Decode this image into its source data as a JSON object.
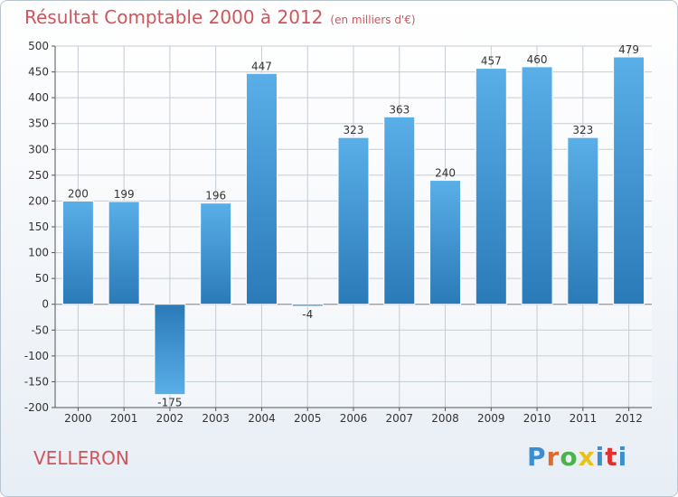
{
  "header": {
    "title": "Résultat Comptable 2000 à 2012",
    "subtitle": "(en milliers d'€)"
  },
  "footer": {
    "town": "VELLERON",
    "brand": "Proxiti",
    "brand_colors": [
      "#3a8fd1",
      "#e06b2a",
      "#4bb34b",
      "#e8c21a",
      "#3a8fd1",
      "#e03030",
      "#3a8fd1"
    ]
  },
  "colors": {
    "bar_light": "#5aafe8",
    "bar_dark": "#2a7ab8",
    "title": "#d0555a"
  },
  "chart_data": {
    "type": "bar",
    "title": "Résultat Comptable 2000 à 2012",
    "xlabel": "",
    "ylabel": "en milliers d'€",
    "categories": [
      "2000",
      "2001",
      "2002",
      "2003",
      "2004",
      "2005",
      "2006",
      "2007",
      "2008",
      "2009",
      "2010",
      "2011",
      "2012"
    ],
    "values": [
      200,
      199,
      -175,
      196,
      447,
      -4,
      323,
      363,
      240,
      457,
      460,
      323,
      479
    ],
    "value_labels": [
      "200",
      "199",
      "-175",
      "196",
      "447",
      "-4",
      "323",
      "363",
      "240",
      "457",
      "460",
      "323",
      "479"
    ],
    "ylim": [
      -200,
      500
    ],
    "yticks": [
      -200,
      -150,
      -100,
      -50,
      0,
      50,
      100,
      150,
      200,
      250,
      300,
      350,
      400,
      450,
      500
    ],
    "ytick_labels": [
      "-200",
      "-150",
      "-100",
      "-50",
      "0",
      "50",
      "100",
      "150",
      "200",
      "250",
      "300",
      "350",
      "400",
      "450",
      "500"
    ],
    "grid": true
  }
}
